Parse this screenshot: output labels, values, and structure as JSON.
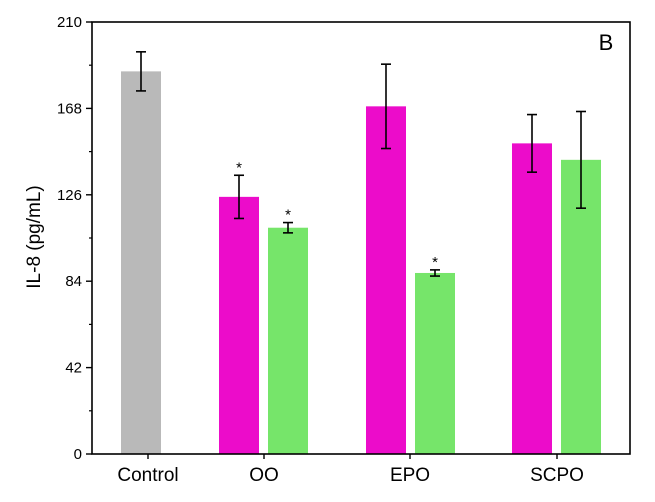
{
  "chart_data": {
    "type": "bar",
    "panel_label": "B",
    "ylabel": "IL-8 (pg/mL)",
    "xlabel": "",
    "ylim": [
      0,
      210
    ],
    "yticks": [
      "0",
      "42",
      "84",
      "126",
      "168",
      "210"
    ],
    "categories": [
      "Control",
      "OO",
      "EPO",
      "SCPO"
    ],
    "grid": false,
    "legend": "none",
    "bars": [
      {
        "category": "Control",
        "value": 186,
        "error": 9.5,
        "color": "#b9b9b9",
        "significant": false
      },
      {
        "category": "OO",
        "value": 125,
        "error": 10.5,
        "color": "#ec0cca",
        "significant": true
      },
      {
        "category": "OO",
        "value": 110,
        "error": 2.5,
        "color": "#76e56a",
        "significant": true
      },
      {
        "category": "EPO",
        "value": 169,
        "error": 20.5,
        "color": "#ec0cca",
        "significant": false
      },
      {
        "category": "EPO",
        "value": 88,
        "error": 1.5,
        "color": "#76e56a",
        "significant": true
      },
      {
        "category": "SCPO",
        "value": 151,
        "error": 14,
        "color": "#ec0cca",
        "significant": false
      },
      {
        "category": "SCPO",
        "value": 143,
        "error": 23.5,
        "color": "#76e56a",
        "significant": false
      }
    ],
    "significance_marker": "*"
  }
}
